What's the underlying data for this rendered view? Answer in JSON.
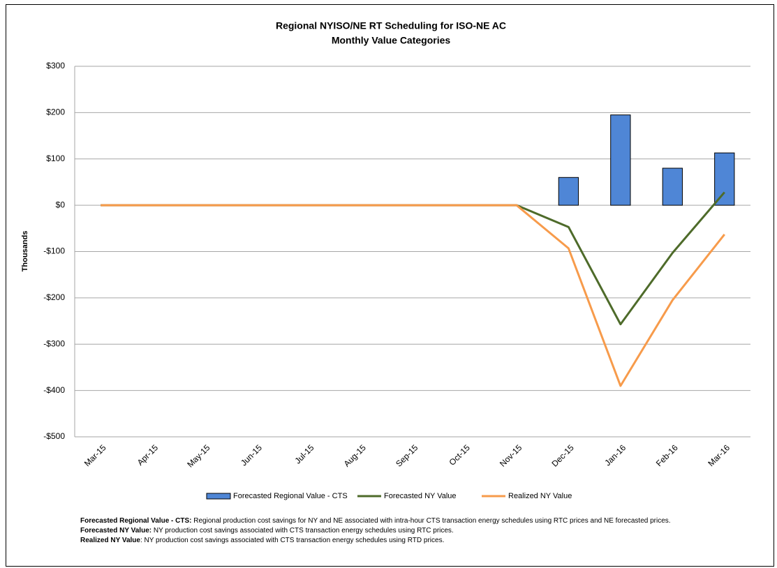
{
  "chart_data": {
    "type": "bar-line",
    "title": [
      "Regional NYISO/NE RT Scheduling for ISO-NE AC",
      "Monthly Value Categories"
    ],
    "y_label": "Thousands",
    "categories": [
      "Mar-15",
      "Apr-15",
      "May-15",
      "Jun-15",
      "Jul-15",
      "Aug-15",
      "Sep-15",
      "Oct-15",
      "Nov-15",
      "Dec-15",
      "Jan-16",
      "Feb-16",
      "Mar-16"
    ],
    "series": [
      {
        "name": "Forecasted Regional Value - CTS",
        "type": "bar",
        "color": "#4f86d6",
        "values": [
          0,
          0,
          0,
          0,
          0,
          0,
          0,
          0,
          0,
          60,
          195,
          80,
          113
        ]
      },
      {
        "name": "Forecasted NY Value",
        "type": "line",
        "color": "#4e6b2a",
        "values": [
          0,
          0,
          0,
          0,
          0,
          0,
          0,
          0,
          0,
          -47,
          -257,
          -103,
          28
        ]
      },
      {
        "name": "Realized NY Value",
        "type": "line",
        "color": "#f79b4b",
        "values": [
          0,
          0,
          0,
          0,
          0,
          0,
          0,
          0,
          0,
          -93,
          -390,
          -205,
          -63
        ]
      }
    ],
    "ylim": [
      -500,
      300
    ],
    "yticks": [
      {
        "value": -500,
        "label": "-$500"
      },
      {
        "value": -400,
        "label": "-$400"
      },
      {
        "value": -300,
        "label": "-$300"
      },
      {
        "value": -200,
        "label": "-$200"
      },
      {
        "value": -100,
        "label": "-$100"
      },
      {
        "value": 0,
        "label": "$0"
      },
      {
        "value": 100,
        "label": "$100"
      },
      {
        "value": 200,
        "label": "$200"
      },
      {
        "value": 300,
        "label": "$300"
      }
    ],
    "grid": true,
    "legend": "bottom",
    "notes": [
      {
        "term": "Forecasted Regional Value - CTS:",
        "text": " Regional production cost savings for NY and NE associated with intra-hour CTS transaction energy schedules using RTC prices and NE forecasted prices."
      },
      {
        "term": "Forecasted NY Value:",
        "text": " NY production cost savings associated with CTS transaction energy schedules using RTC prices."
      },
      {
        "term": "Realized NY Value",
        "text": ": NY production cost savings associated with CTS transaction energy schedules using RTD prices."
      }
    ]
  }
}
